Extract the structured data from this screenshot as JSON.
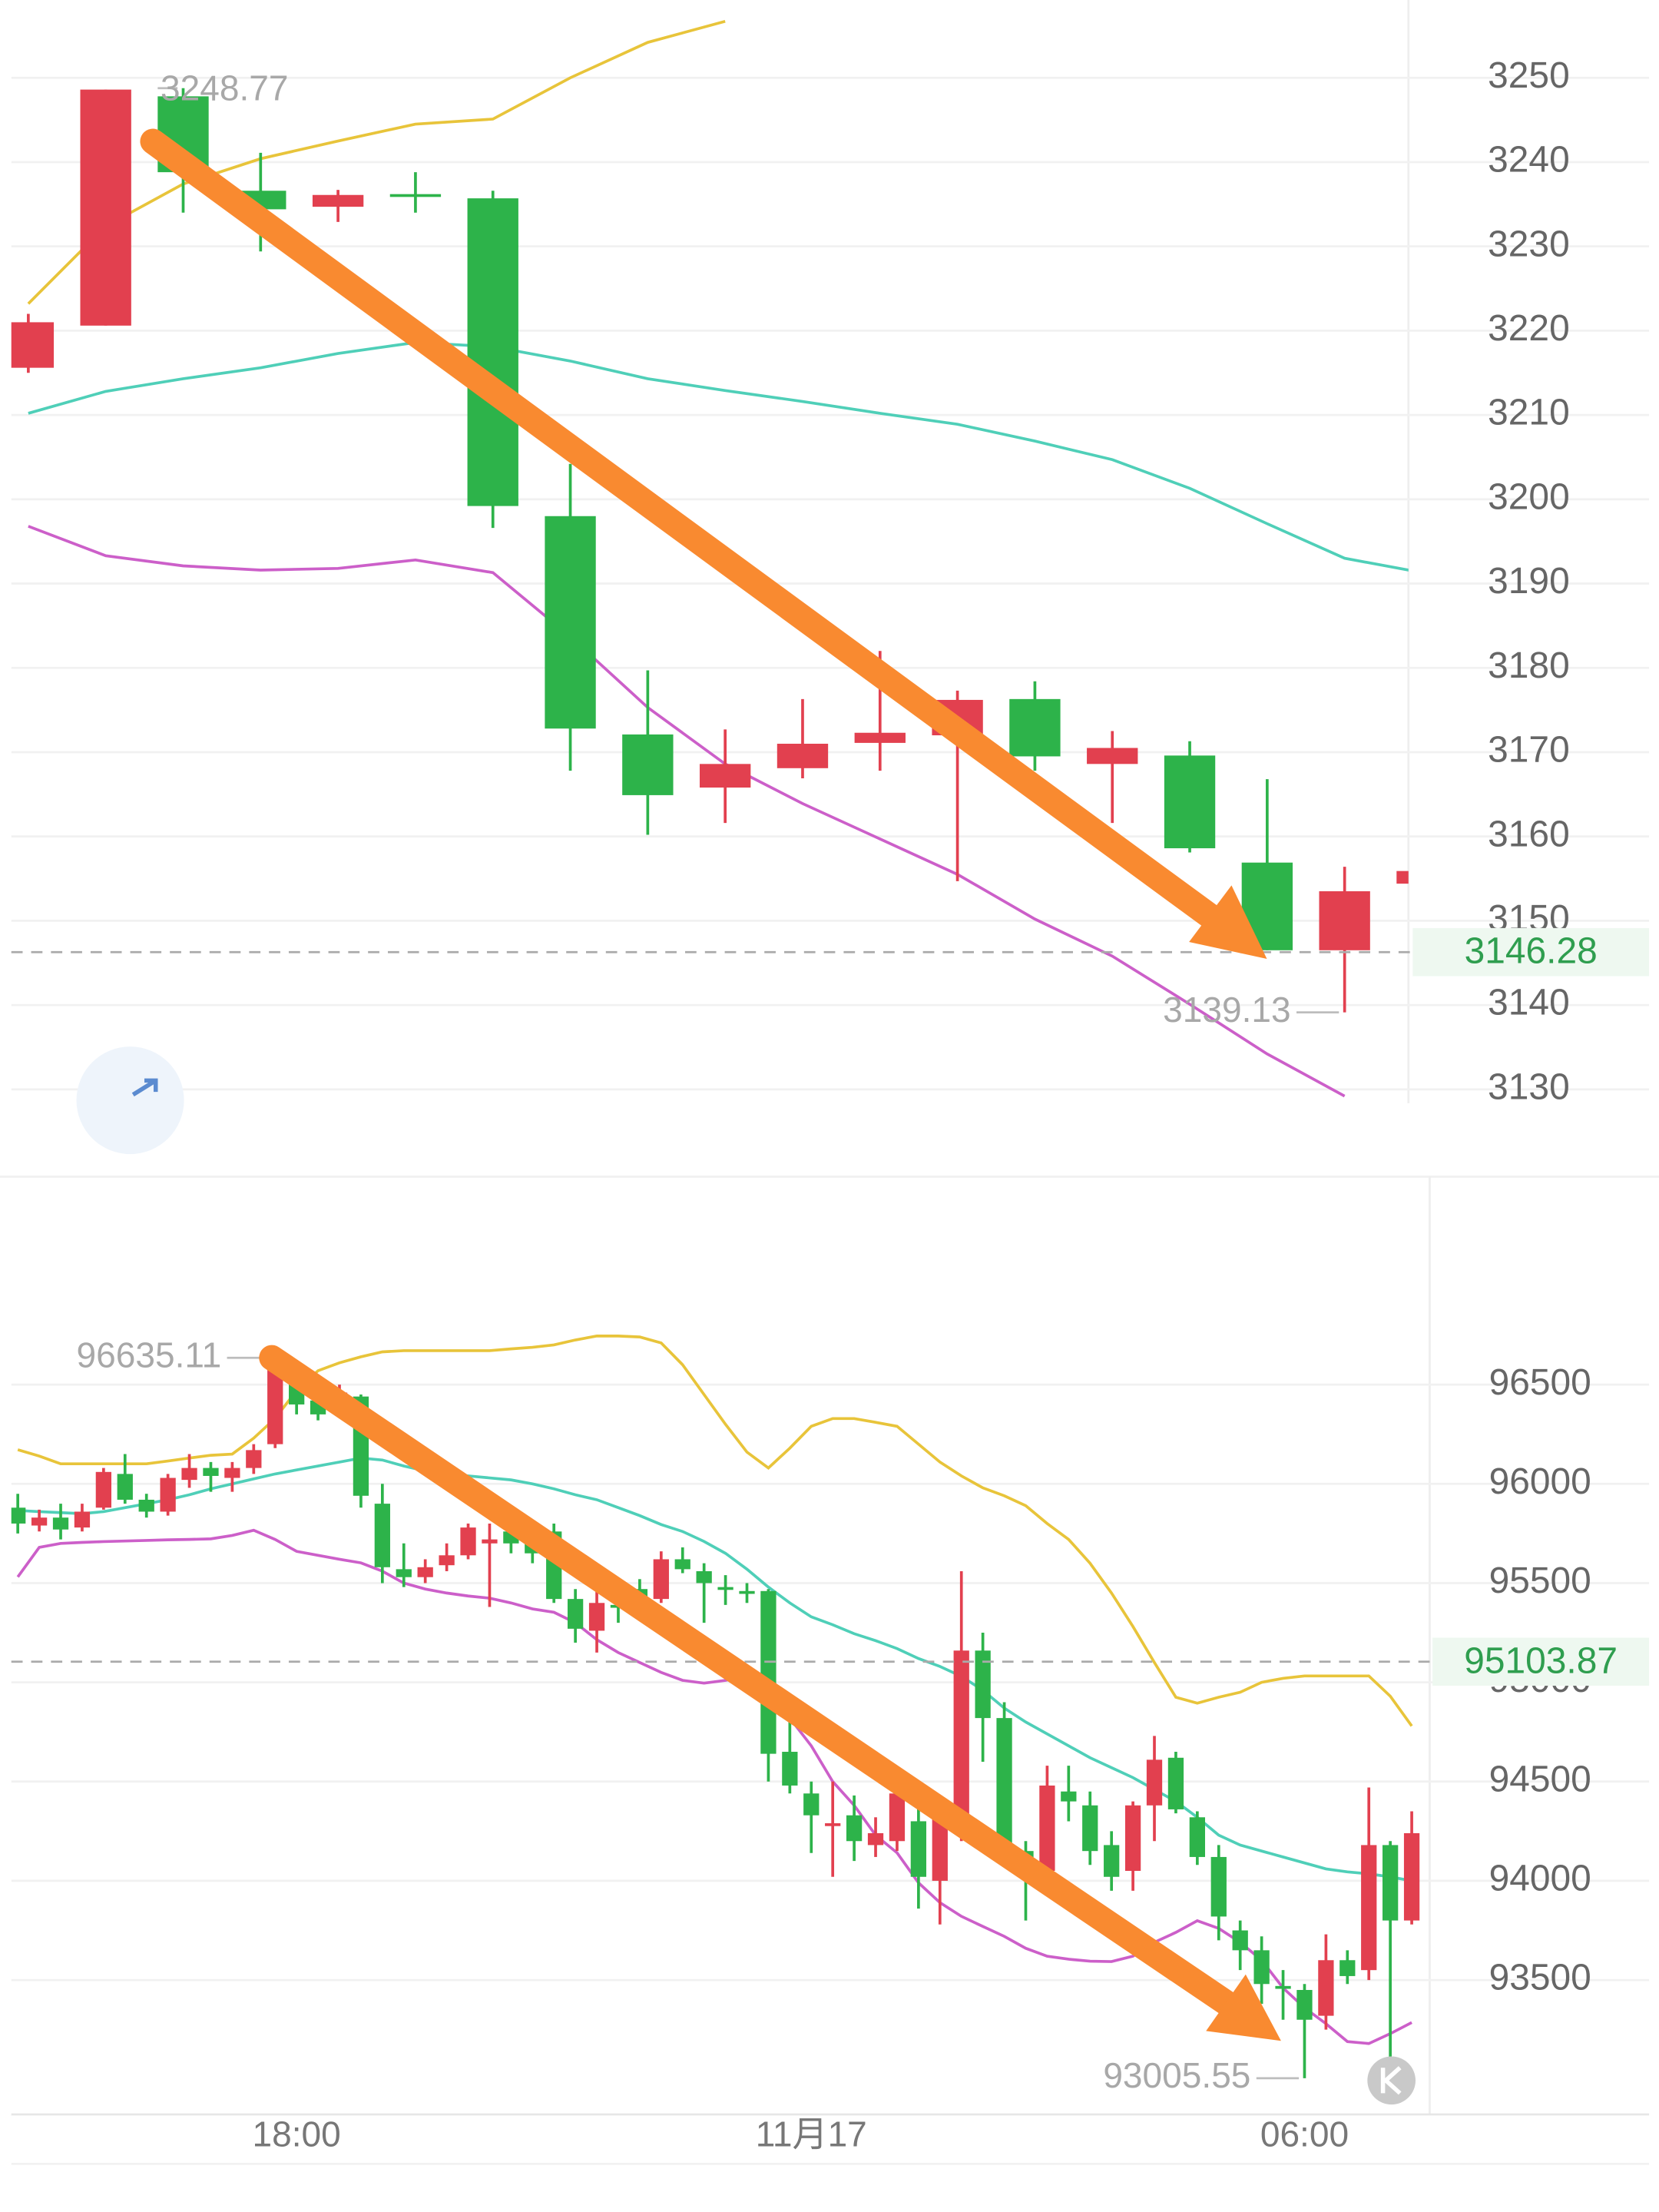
{
  "chart_data": [
    {
      "type": "candlestick",
      "open": [
        3215.6,
        3220.6,
        3247.8,
        3236.6,
        3234.7,
        3236.2,
        3235.7,
        3198.0,
        3172.1,
        3165.8,
        3168.1,
        3171.1,
        3172.0,
        3176.3,
        3168.6,
        3169.6,
        3156.9,
        3146.5,
        3154.4
      ],
      "high": [
        3222.0,
        3248.6,
        3248.77,
        3241.1,
        3236.7,
        3238.8,
        3236.6,
        3204.2,
        3179.7,
        3172.7,
        3176.3,
        3182.0,
        3177.3,
        3178.4,
        3172.5,
        3171.3,
        3166.8,
        3156.4,
        3156.5
      ],
      "low": [
        3215.0,
        3220.6,
        3234.0,
        3229.4,
        3232.9,
        3234.0,
        3196.6,
        3167.8,
        3160.2,
        3161.6,
        3166.9,
        3167.8,
        3154.7,
        3167.8,
        3161.6,
        3158.1,
        3146.5,
        3139.13,
        3154.0
      ],
      "close": [
        3221.0,
        3248.6,
        3238.8,
        3234.4,
        3236.1,
        3236.2,
        3199.2,
        3172.8,
        3164.9,
        3168.6,
        3171.0,
        3172.3,
        3176.2,
        3169.5,
        3170.5,
        3158.6,
        3146.5,
        3153.5,
        3155.9
      ],
      "up_color": "#e2404f",
      "down_color": "#2db34a",
      "lines": [
        {
          "color": "#e8c43a",
          "values": [
            3223.2,
            3232.4,
            3237.4,
            3240.4,
            3242.5,
            3244.5,
            3245.1,
            3250.0,
            3254.2,
            3256.7,
            null,
            null,
            null,
            null,
            null,
            null,
            null,
            null,
            null
          ]
        },
        {
          "color": "#4fcfb8",
          "values": [
            3210.2,
            3212.8,
            3214.3,
            3215.6,
            3217.3,
            3218.6,
            3218.1,
            3216.4,
            3214.3,
            3212.9,
            3211.6,
            3210.2,
            3208.9,
            3206.9,
            3204.7,
            3201.3,
            3197.1,
            3193.0,
            3191.3
          ]
        },
        {
          "color": "#cc5fc9",
          "values": [
            3196.8,
            3193.3,
            3192.1,
            3191.6,
            3191.8,
            3192.8,
            3191.3,
            3183.7,
            3175.3,
            3168.6,
            3163.9,
            3159.7,
            3155.5,
            3150.2,
            3145.8,
            3140.1,
            3134.2,
            3129.2,
            null
          ]
        }
      ],
      "ylim": [
        3128.36,
        3257.55
      ],
      "yticks": [
        3130,
        3140,
        3150,
        3160,
        3170,
        3180,
        3190,
        3200,
        3210,
        3220,
        3230,
        3240,
        3250
      ],
      "annotations": {
        "last_price": 3146.28,
        "high": 3248.77,
        "low": 3139.13
      }
    },
    {
      "type": "candlestick",
      "categories": [
        null,
        null,
        null,
        null,
        null,
        null,
        null,
        null,
        null,
        null,
        null,
        null,
        null,
        "18:00",
        null,
        null,
        null,
        null,
        null,
        null,
        null,
        null,
        null,
        null,
        null,
        null,
        null,
        null,
        null,
        null,
        null,
        null,
        null,
        null,
        null,
        null,
        null,
        "11月17",
        null,
        null,
        null,
        null,
        null,
        null,
        null,
        null,
        null,
        null,
        null,
        null,
        null,
        null,
        null,
        null,
        null,
        null,
        null,
        null,
        null,
        null,
        "06:00",
        null,
        null,
        null,
        null,
        null
      ],
      "open": [
        95880,
        95790,
        95830,
        95780,
        95880,
        96050,
        95920,
        95860,
        96020,
        96080,
        96030,
        96080,
        96200,
        96600,
        96420,
        96420,
        96440,
        95900,
        95570,
        95530,
        95590,
        95640,
        95700,
        95760,
        95730,
        95760,
        95420,
        95260,
        95390,
        95470,
        95420,
        95620,
        95560,
        95480,
        95460,
        95460,
        94650,
        94440,
        94280,
        94330,
        94180,
        94200,
        94300,
        94000,
        94300,
        95160,
        94820,
        94150,
        94050,
        94450,
        94380,
        94180,
        94050,
        94380,
        94620,
        94320,
        94120,
        93750,
        93650,
        93470,
        93450,
        93320,
        93600,
        93550,
        94180,
        93800
      ],
      "high": [
        95950,
        95870,
        95900,
        95900,
        96080,
        96150,
        95950,
        96050,
        96150,
        96110,
        96110,
        96200,
        96635.11,
        96620,
        96480,
        96500,
        96450,
        96000,
        95700,
        95620,
        95700,
        95800,
        95800,
        95860,
        95800,
        95800,
        95470,
        95460,
        95420,
        95520,
        95660,
        95680,
        95600,
        95540,
        95500,
        95470,
        94800,
        94500,
        94500,
        94430,
        94320,
        94500,
        94400,
        94400,
        95560,
        95250,
        94900,
        94200,
        94580,
        94580,
        94450,
        94250,
        94400,
        94730,
        94650,
        94350,
        94180,
        93800,
        93720,
        93550,
        93480,
        93730,
        93650,
        94470,
        94200,
        94350
      ],
      "low": [
        95750,
        95760,
        95720,
        95760,
        95870,
        95900,
        95830,
        95840,
        95980,
        95960,
        95960,
        96050,
        96180,
        96350,
        96320,
        96380,
        95880,
        95500,
        95480,
        95500,
        95560,
        95620,
        95380,
        95650,
        95600,
        95400,
        95200,
        95150,
        95300,
        95400,
        95400,
        95550,
        95300,
        95390,
        95400,
        94500,
        94440,
        94140,
        94020,
        94100,
        94120,
        94150,
        93860,
        93780,
        94200,
        94600,
        94100,
        93800,
        94000,
        94300,
        94080,
        93950,
        93950,
        94200,
        94340,
        94080,
        93700,
        93550,
        93380,
        93300,
        93005.55,
        93250,
        93480,
        93500,
        93050,
        93780
      ],
      "close": [
        95800,
        95830,
        95770,
        95860,
        96060,
        95920,
        95860,
        96030,
        96080,
        96040,
        96080,
        96170,
        96620,
        96400,
        96350,
        96460,
        95940,
        95580,
        95530,
        95580,
        95640,
        95780,
        95720,
        95700,
        95650,
        95420,
        95270,
        95400,
        95380,
        95430,
        95620,
        95570,
        95500,
        95470,
        95450,
        94640,
        94480,
        94330,
        94290,
        94200,
        94240,
        94440,
        94020,
        94330,
        95160,
        94820,
        94160,
        94050,
        94480,
        94400,
        94150,
        94020,
        94380,
        94610,
        94360,
        94120,
        93820,
        93650,
        93480,
        93460,
        93300,
        93600,
        93520,
        94180,
        93800,
        94240
      ],
      "up_color": "#e2404f",
      "down_color": "#2db34a",
      "lines": [
        {
          "color": "#e8c43a",
          "values": [
            96172,
            96140,
            96101,
            96101,
            96101,
            96101,
            96101,
            96115,
            96130,
            96144,
            96150,
            96230,
            96330,
            96470,
            96570,
            96610,
            96640,
            96665,
            96671,
            96671,
            96671,
            96671,
            96671,
            96680,
            96688,
            96700,
            96725,
            96745,
            96745,
            96740,
            96710,
            96600,
            96450,
            96300,
            96160,
            96080,
            96180,
            96290,
            96329,
            96329,
            96310,
            96290,
            96200,
            96110,
            96040,
            95980,
            95940,
            95890,
            95800,
            95720,
            95600,
            95450,
            95281,
            95100,
            94925,
            94895,
            94925,
            94950,
            95000,
            95020,
            95032,
            95032,
            95032,
            95032,
            94930,
            94780
          ]
        },
        {
          "color": "#4fcfb8",
          "values": [
            95866,
            95860,
            95855,
            95850,
            95860,
            95880,
            95900,
            95920,
            95945,
            95975,
            96000,
            96025,
            96050,
            96070,
            96090,
            96110,
            96130,
            96120,
            96090,
            96065,
            96050,
            96040,
            96030,
            96020,
            96000,
            95975,
            95945,
            95920,
            95880,
            95840,
            95795,
            95760,
            95710,
            95650,
            95570,
            95480,
            95400,
            95330,
            95290,
            95245,
            95210,
            95170,
            95120,
            95080,
            95030,
            94960,
            94870,
            94800,
            94740,
            94680,
            94620,
            94570,
            94520,
            94460,
            94400,
            94320,
            94230,
            94180,
            94150,
            94120,
            94090,
            94060,
            94045,
            94035,
            94020,
            94000
          ]
        },
        {
          "color": "#cc5fc9",
          "values": [
            95531,
            95680,
            95700,
            95705,
            95709,
            95712,
            95715,
            95718,
            95720,
            95723,
            95740,
            95766,
            95720,
            95660,
            95640,
            95620,
            95602,
            95560,
            95500,
            95470,
            95450,
            95435,
            95424,
            95400,
            95370,
            95353,
            95300,
            95215,
            95150,
            95100,
            95050,
            95010,
            94996,
            95010,
            95032,
            94950,
            94820,
            94680,
            94500,
            94380,
            94230,
            94141,
            93990,
            93890,
            93821,
            93770,
            93720,
            93660,
            93620,
            93605,
            93595,
            93593,
            93620,
            93690,
            93740,
            93799,
            93760,
            93690,
            93600,
            93460,
            93360,
            93280,
            93190,
            93180,
            93230,
            93286
          ]
        }
      ],
      "ylim": [
        92858.6,
        97490.5
      ],
      "yticks": [
        93500,
        94000,
        94500,
        95000,
        95500,
        96000,
        96500
      ],
      "annotations": {
        "last_price": 95103.87,
        "high": 96635.11,
        "low": 93005.55
      }
    }
  ]
}
